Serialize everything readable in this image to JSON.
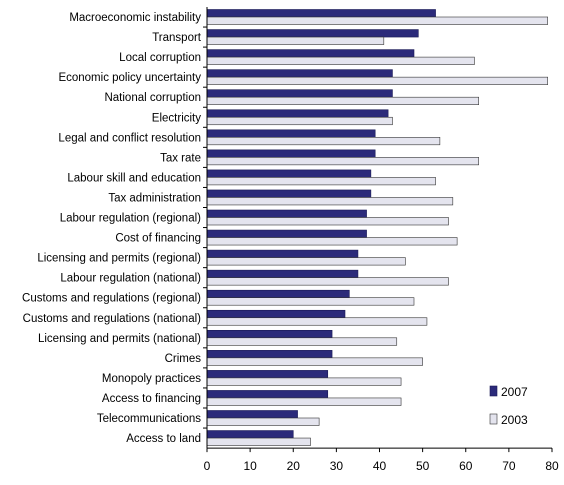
{
  "chart_data": {
    "type": "bar",
    "orientation": "horizontal",
    "categories": [
      "Macroeconomic instability",
      "Transport",
      "Local corruption",
      "Economic policy uncertainty",
      "National corruption",
      "Electricity",
      "Legal and conflict resolution",
      "Tax rate",
      "Labour skill and education",
      "Tax administration",
      "Labour regulation (regional)",
      "Cost of financing",
      "Licensing and permits (regional)",
      "Labour regulation (national)",
      "Customs and regulations (regional)",
      "Customs and regulations (national)",
      "Licensing and permits (national)",
      "Crimes",
      "Monopoly practices",
      "Access to financing",
      "Telecommunications",
      "Access to land"
    ],
    "series": [
      {
        "name": "2007",
        "color": "#2b2a7a",
        "values": [
          53,
          49,
          48,
          43,
          43,
          42,
          39,
          39,
          38,
          38,
          37,
          37,
          35,
          35,
          33,
          32,
          29,
          29,
          28,
          28,
          21,
          20
        ]
      },
      {
        "name": "2003",
        "color": "#e4e4ee",
        "values": [
          79,
          41,
          62,
          79,
          63,
          43,
          54,
          63,
          53,
          57,
          56,
          58,
          46,
          56,
          48,
          51,
          44,
          50,
          45,
          45,
          26,
          24
        ]
      }
    ],
    "xlim": [
      0,
      80
    ],
    "xticks": [
      0,
      10,
      20,
      30,
      40,
      50,
      60,
      70,
      80
    ],
    "title": "",
    "xlabel": "",
    "ylabel": "",
    "grid": false,
    "legend_position": "bottom-right"
  }
}
